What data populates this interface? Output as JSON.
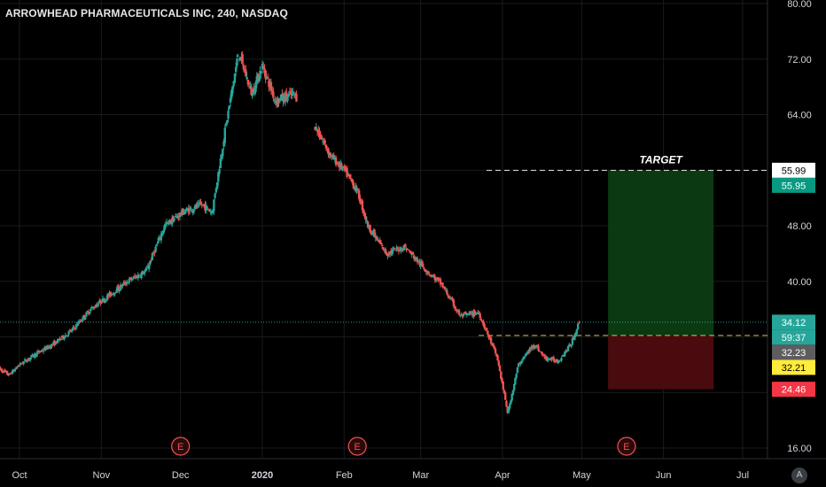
{
  "header": {
    "title": "ARROWHEAD PHARMACEUTICALS INC, 240, NASDAQ"
  },
  "colors": {
    "background": "#000000",
    "grid": "#1a1a1a",
    "up": "#26a69a",
    "down": "#ef5350",
    "axis_text": "#d1d4dc",
    "profit_zone": "#0b3a12",
    "loss_zone": "#4a0b0e",
    "target_line": "#e6e6e6",
    "entry_line": "#c9c95a",
    "earnings": "#ef5350"
  },
  "chart_data": {
    "type": "candlestick",
    "title": "ARROWHEAD PHARMACEUTICALS INC, 240, NASDAQ",
    "x_tick_labels": [
      "Oct",
      "Nov",
      "Dec",
      "2020",
      "Feb",
      "Mar",
      "Apr",
      "May",
      "Jun",
      "Jul"
    ],
    "y_tick_labels": [
      "16.00",
      "24.00",
      "32.00",
      "40.00",
      "48.00",
      "56.00",
      "64.00",
      "72.00",
      "80.00"
    ],
    "ylim": [
      16,
      80
    ],
    "grid": true,
    "price_path": [
      [
        "2019-09-23",
        27.5
      ],
      [
        "2019-09-27",
        26.5
      ],
      [
        "2019-10-01",
        28.0
      ],
      [
        "2019-10-07",
        29.5
      ],
      [
        "2019-10-14",
        31.0
      ],
      [
        "2019-10-21",
        33.0
      ],
      [
        "2019-10-28",
        36.0
      ],
      [
        "2019-11-04",
        38.0
      ],
      [
        "2019-11-11",
        40.0
      ],
      [
        "2019-11-18",
        41.5
      ],
      [
        "2019-11-25",
        48.0
      ],
      [
        "2019-12-02",
        50.0
      ],
      [
        "2019-12-09",
        51.0
      ],
      [
        "2019-12-13",
        50.0
      ],
      [
        "2019-12-18",
        62.0
      ],
      [
        "2019-12-23",
        73.0
      ],
      [
        "2019-12-28",
        67.0
      ],
      [
        "2020-01-01",
        71.0
      ],
      [
        "2020-01-06",
        66.0
      ],
      [
        "2020-01-13",
        67.0
      ],
      [
        "2020-01-20",
        63.0
      ],
      [
        "2020-01-27",
        58.0
      ],
      [
        "2020-02-01",
        56.0
      ],
      [
        "2020-02-06",
        53.0
      ],
      [
        "2020-02-10",
        48.0
      ],
      [
        "2020-02-17",
        44.0
      ],
      [
        "2020-02-24",
        45.0
      ],
      [
        "2020-03-02",
        42.0
      ],
      [
        "2020-03-09",
        39.5
      ],
      [
        "2020-03-16",
        35.0
      ],
      [
        "2020-03-23",
        35.5
      ],
      [
        "2020-03-30",
        29.0
      ],
      [
        "2020-04-03",
        21.0
      ],
      [
        "2020-04-07",
        28.0
      ],
      [
        "2020-04-13",
        31.0
      ],
      [
        "2020-04-17",
        29.0
      ],
      [
        "2020-04-22",
        28.5
      ],
      [
        "2020-04-27",
        31.0
      ],
      [
        "2020-04-30",
        34.1
      ]
    ],
    "gap_ranges": [
      [
        "2020-01-14",
        "2020-01-21"
      ]
    ],
    "earnings_markers": [
      {
        "date": "2019-12-01",
        "label": "E"
      },
      {
        "date": "2020-02-06",
        "label": "E"
      },
      {
        "date": "2020-05-18",
        "label": "E"
      }
    ],
    "position": {
      "start_date": "2020-05-11",
      "end_date": "2020-06-20",
      "target": 55.99,
      "entry": 32.21,
      "stop": 24.46,
      "target_label": "TARGET"
    },
    "current_price_line": 34.12,
    "price_labels": [
      {
        "text": "55.99",
        "value": 55.99,
        "bg": "#ffffff",
        "fg": "#000000"
      },
      {
        "text": "55.95",
        "value": 55.95,
        "bg": "#089981",
        "fg": "#ffffff"
      },
      {
        "text": "34.12",
        "value": 34.12,
        "bg": "#26a69a",
        "fg": "#ffffff"
      },
      {
        "text": "59:37",
        "value": 34.12,
        "bg": "#26a69a",
        "fg": "#ffffff"
      },
      {
        "text": "32.23",
        "value": 32.23,
        "bg": "#5d5d5d",
        "fg": "#ffffff"
      },
      {
        "text": "32.21",
        "value": 32.21,
        "bg": "#ffeb3b",
        "fg": "#000000"
      },
      {
        "text": "24.46",
        "value": 24.46,
        "bg": "#f23645",
        "fg": "#ffffff"
      }
    ]
  },
  "axis_mode_button": "A"
}
